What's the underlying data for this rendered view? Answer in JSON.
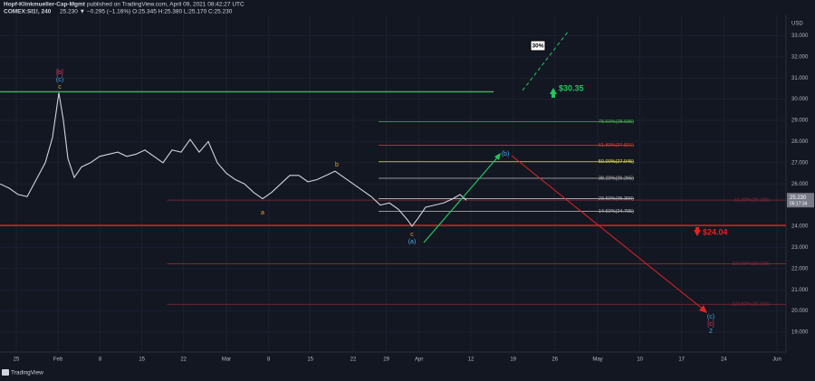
{
  "header": {
    "author": "Hopf-Klinkmueller-Cap-Mgmt",
    "published": "published on TradingView.com, April 09, 2021 08:42:27 UTC",
    "symbol": "COMEX:SI1!, 240",
    "quote": "25.230 ▼ −0.295 (−1.16%) O:25.345 H:25.380 L:25.170 C:25.230"
  },
  "chart_data": {
    "type": "line",
    "y_axis_label": "USD",
    "price_tag": {
      "value": 25.23,
      "label": "25.230",
      "countdown": "05:17:34"
    },
    "series": [
      {
        "color": "#d1d4dc",
        "x": [
          -2.7,
          -1.2,
          0.3,
          1.8,
          3.3,
          4.8,
          6.0,
          7.05,
          7.8,
          8.55,
          9.6,
          10.8,
          12.3,
          13.8,
          15.3,
          16.8,
          18.3,
          19.8,
          21.3,
          22.8,
          24.3,
          25.8,
          27.3,
          28.8,
          30.3,
          31.8,
          33.3,
          34.8,
          36.3,
          37.8,
          39.3,
          40.8,
          42.3,
          43.8,
          45.3,
          46.8,
          48.3,
          49.8,
          51.3,
          52.8,
          54.3,
          55.8,
          57.3,
          58.8,
          60.3,
          61.8,
          63.3,
          64.8,
          65.55,
          66.6,
          67.8,
          69.3,
          70.8,
          72.3,
          73.5,
          74.55
        ],
        "values": [
          26.0,
          25.8,
          25.5,
          25.4,
          26.2,
          27.0,
          28.2,
          30.3,
          29.0,
          27.2,
          26.3,
          26.8,
          27.0,
          27.3,
          27.4,
          27.5,
          27.3,
          27.4,
          27.6,
          27.3,
          27.0,
          27.6,
          27.5,
          28.1,
          27.5,
          28.0,
          27.0,
          26.5,
          26.2,
          26.0,
          25.6,
          25.3,
          25.6,
          26.0,
          26.4,
          26.4,
          26.1,
          26.2,
          26.4,
          26.6,
          26.3,
          26.0,
          25.7,
          25.4,
          25.0,
          25.1,
          24.8,
          24.3,
          24.0,
          24.4,
          24.9,
          25.0,
          25.1,
          25.3,
          25.5,
          25.23
        ]
      }
    ],
    "levels": [
      {
        "value": 30.35,
        "x0": -2.7,
        "x1": 79.05,
        "color": "#22c55e"
      },
      {
        "value": 24.04,
        "x0": -2.7,
        "x1": 127.5,
        "color": "#e02424"
      },
      {
        "value": 28.935,
        "x0": 60,
        "x1": 102.3,
        "color": "#4caf50",
        "label": "78.60%(28.935)"
      },
      {
        "value": 27.821,
        "x0": 60,
        "x1": 102.3,
        "color": "#e53935",
        "label": "61.80%(27.821)"
      },
      {
        "value": 27.045,
        "x0": 60,
        "x1": 102.3,
        "color": "#e6e64c",
        "label": "50.00%(27.045)"
      },
      {
        "value": 26.265,
        "x0": 60,
        "x1": 102.3,
        "color": "#c0c0c0",
        "label": "38.20%(26.265)"
      },
      {
        "value": 25.3,
        "x0": 60,
        "x1": 102.3,
        "color": "#c0c0c0",
        "label": "23.60%(25.300)"
      },
      {
        "value": 24.705,
        "x0": 60,
        "x1": 102.3,
        "color": "#c0c0c0",
        "label": "14.60%(24.705)"
      },
      {
        "value": 25.235,
        "x0": 25.0,
        "x1": 127.5,
        "color": "#8b2a3a",
        "label": "61.80%(25.235)"
      },
      {
        "value": 22.23,
        "x0": 25.0,
        "x1": 127.5,
        "color": "#8b2a3a",
        "label": "100.00%(22.230)"
      },
      {
        "value": 20.315,
        "x0": 25.0,
        "x1": 127.5,
        "color": "#8b2a3a",
        "label": "123.60%(20.315)"
      }
    ],
    "annotations": {
      "up_target": "$30.35",
      "down_target": "$24.04",
      "percent": "30%",
      "waves": [
        "[b]",
        "(c)",
        "c",
        "b",
        "a",
        "c",
        "(a)",
        "(b)",
        "(c)",
        "[c]",
        "2"
      ]
    },
    "xlim": [
      -2.7,
      127.5
    ],
    "ylim": [
      18.06,
      34.0
    ],
    "xticks": [
      {
        "value": 0,
        "label": "25"
      },
      {
        "value": 6.9,
        "label": "Feb"
      },
      {
        "value": 13.9,
        "label": "8"
      },
      {
        "value": 20.8,
        "label": "15"
      },
      {
        "value": 27.7,
        "label": "22"
      },
      {
        "value": 34.8,
        "label": "Mar"
      },
      {
        "value": 41.8,
        "label": "8"
      },
      {
        "value": 48.7,
        "label": "15"
      },
      {
        "value": 55.8,
        "label": "22"
      },
      {
        "value": 61.3,
        "label": "29"
      },
      {
        "value": 66.7,
        "label": "Apr"
      },
      {
        "value": 75.3,
        "label": "12"
      },
      {
        "value": 82.3,
        "label": "19"
      },
      {
        "value": 89.2,
        "label": "26"
      },
      {
        "value": 96.3,
        "label": "May"
      },
      {
        "value": 103.3,
        "label": "10"
      },
      {
        "value": 110.2,
        "label": "17"
      },
      {
        "value": 117.2,
        "label": "24"
      },
      {
        "value": 126,
        "label": "Jun"
      }
    ],
    "yticks": [
      {
        "value": 19,
        "label": "19.000"
      },
      {
        "value": 20,
        "label": "20.000"
      },
      {
        "value": 21,
        "label": "21.000"
      },
      {
        "value": 22,
        "label": "22.000"
      },
      {
        "value": 23,
        "label": "23.000"
      },
      {
        "value": 24,
        "label": "24.000"
      },
      {
        "value": 26,
        "label": "26.000"
      },
      {
        "value": 27,
        "label": "27.000"
      },
      {
        "value": 28,
        "label": "28.000"
      },
      {
        "value": 29,
        "label": "29.000"
      },
      {
        "value": 30,
        "label": "30.000"
      },
      {
        "value": 31,
        "label": "31.000"
      },
      {
        "value": 32,
        "label": "32.000"
      },
      {
        "value": 33,
        "label": "33.000"
      }
    ],
    "grid": true
  },
  "footer": {
    "brand": "TradingView"
  }
}
